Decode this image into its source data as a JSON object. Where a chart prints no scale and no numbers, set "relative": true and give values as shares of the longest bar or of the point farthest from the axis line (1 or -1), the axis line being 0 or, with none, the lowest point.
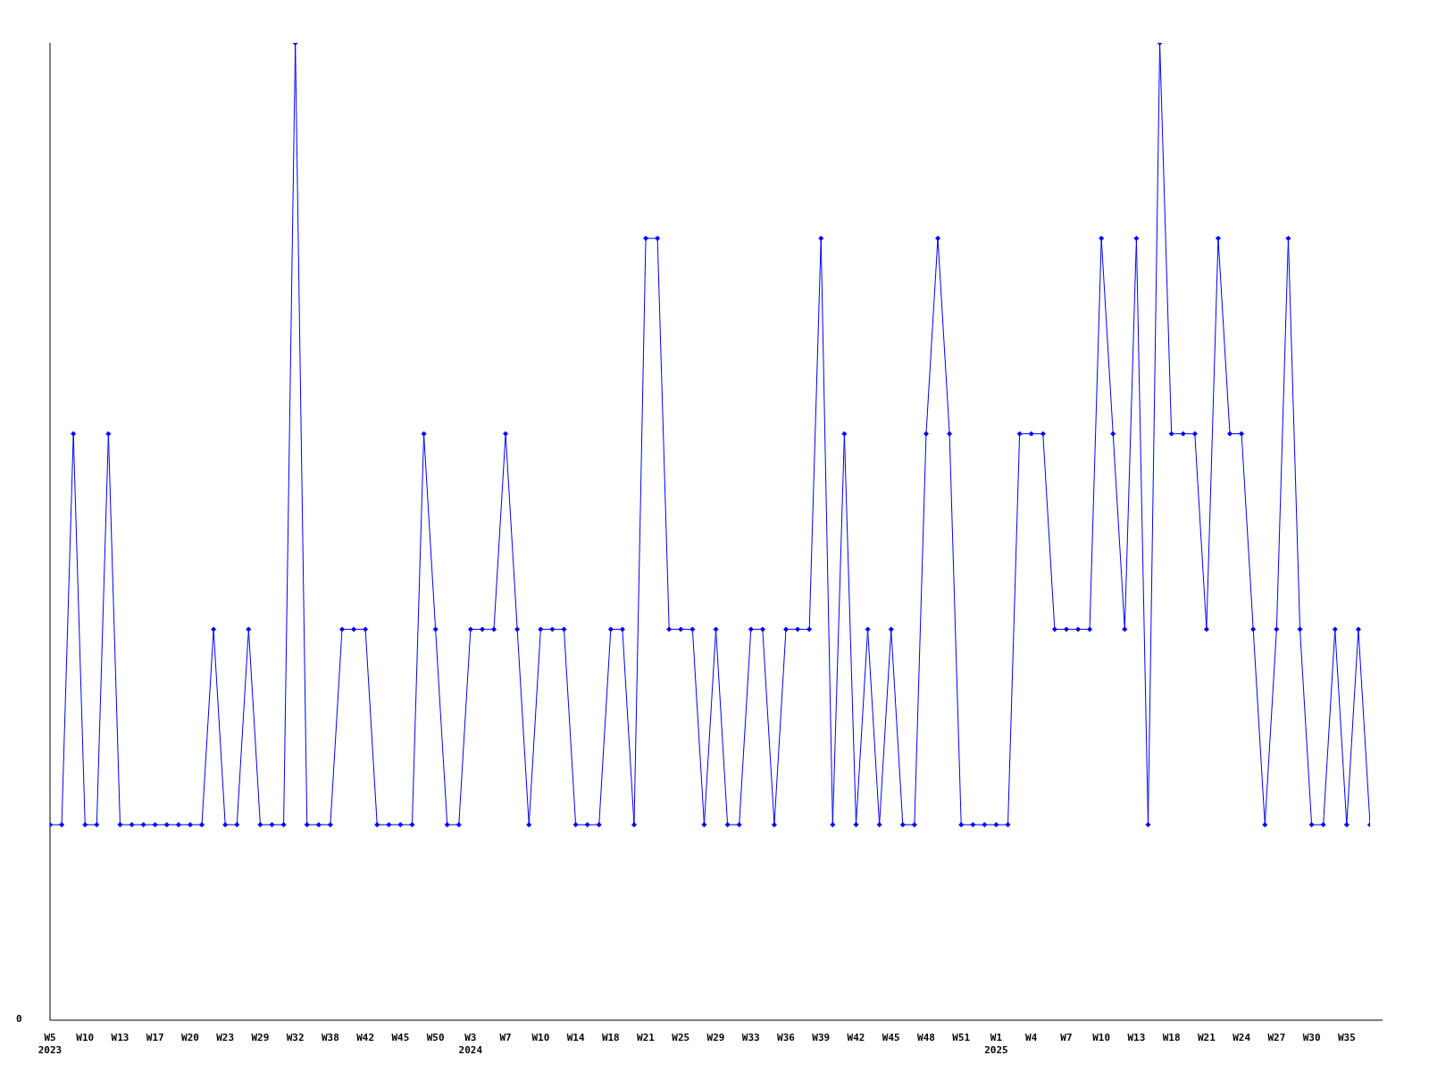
{
  "chart_data": {
    "type": "line",
    "relative": true,
    "annotations": [
      "0"
    ],
    "marker": "diamond",
    "grid": false,
    "legend": false,
    "categories": [
      "W5\n2023",
      null,
      null,
      "W10",
      null,
      null,
      "W13",
      null,
      null,
      "W17",
      null,
      null,
      "W20",
      null,
      null,
      "W23",
      null,
      null,
      "W29",
      null,
      null,
      "W32",
      null,
      null,
      "W38",
      null,
      null,
      "W42",
      null,
      null,
      "W45",
      null,
      null,
      "W50",
      null,
      null,
      "W3\n2024",
      null,
      null,
      "W7",
      null,
      null,
      "W10",
      null,
      null,
      "W14",
      null,
      null,
      "W18",
      null,
      null,
      "W21",
      null,
      null,
      "W25",
      null,
      null,
      "W29",
      null,
      null,
      "W33",
      null,
      null,
      "W36",
      null,
      null,
      "W39",
      null,
      null,
      "W42",
      null,
      null,
      "W45",
      null,
      null,
      "W48",
      null,
      null,
      "W51",
      null,
      null,
      "W1\n2025",
      null,
      null,
      "W4",
      null,
      null,
      "W7",
      null,
      null,
      "W10",
      null,
      null,
      "W13",
      null,
      null,
      "W18",
      null,
      null,
      "W21",
      null,
      null,
      "W24",
      null,
      null,
      "W27",
      null,
      null,
      "W30",
      null,
      null,
      "W35",
      null,
      null
    ],
    "series": [
      {
        "color": "#0000ff",
        "values": [
          0.2,
          0.2,
          0.6,
          0.2,
          0.2,
          0.6,
          0.2,
          0.2,
          0.2,
          0.2,
          0.2,
          0.2,
          0.2,
          0.2,
          0.4,
          0.2,
          0.2,
          0.4,
          0.2,
          0.2,
          0.2,
          1,
          0.2,
          0.2,
          0.2,
          0.4,
          0.4,
          0.4,
          0.2,
          0.2,
          0.2,
          0.2,
          0.6,
          0.4,
          0.2,
          0.2,
          0.4,
          0.4,
          0.4,
          0.6,
          0.4,
          0.2,
          0.4,
          0.4,
          0.4,
          0.2,
          0.2,
          0.2,
          0.4,
          0.4,
          0.2,
          0.8,
          0.8,
          0.4,
          0.4,
          0.4,
          0.2,
          0.4,
          0.2,
          0.2,
          0.4,
          0.4,
          0.2,
          0.4,
          0.4,
          0.4,
          0.8,
          0.2,
          0.6,
          0.2,
          0.4,
          0.2,
          0.4,
          0.2,
          0.2,
          0.6,
          0.8,
          0.6,
          0.2,
          0.2,
          0.2,
          0.2,
          0.2,
          0.6,
          0.6,
          0.6,
          0.4,
          0.4,
          0.4,
          0.4,
          0.8,
          0.6,
          0.4,
          0.8,
          0.2,
          1,
          0.6,
          0.6,
          0.6,
          0.4,
          0.8,
          0.6,
          0.6,
          0.4,
          0.2,
          0.4,
          0.8,
          0.4,
          0.2,
          0.2,
          0.4,
          0.2,
          0.4,
          0.2
        ]
      }
    ]
  }
}
